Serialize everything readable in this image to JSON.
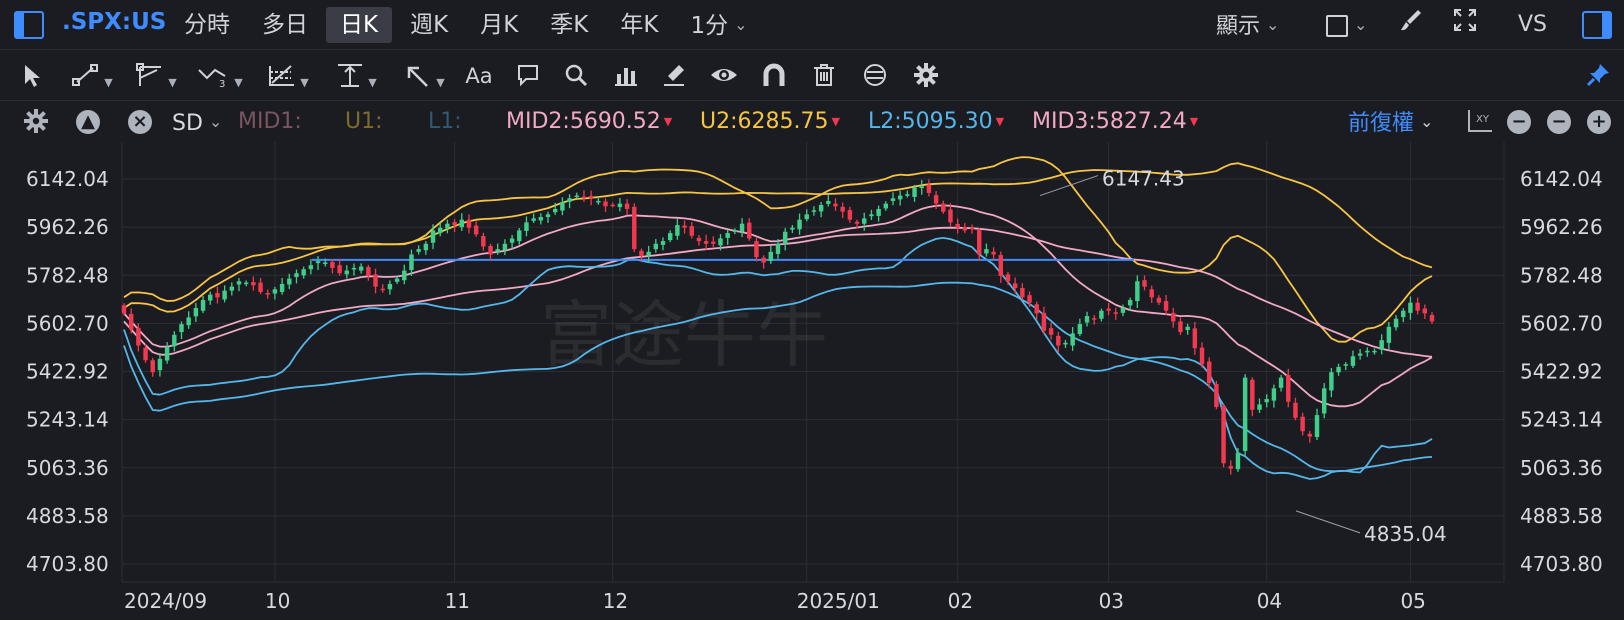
{
  "topbar": {
    "symbol": ".SPX:US",
    "tabs": [
      "分時",
      "多日",
      "日K",
      "週K",
      "月K",
      "季K",
      "年K",
      "1分"
    ],
    "active_tab": "日K",
    "display_label": "顯示",
    "vs_label": "VS"
  },
  "toolbar": {
    "icons": [
      "cursor-icon",
      "line-tool-icon",
      "ray-tool-icon",
      "wave-tool-icon",
      "fib-tool-icon",
      "level-tool-icon",
      "arrow-tool-icon",
      "text-tool-icon",
      "comment-icon",
      "search-icon",
      "measure-icon",
      "brush-icon",
      "eye-icon",
      "magnet-icon",
      "trash-icon",
      "sync-icon",
      "gear-icon",
      "pin-icon"
    ],
    "text_tool_label": "Aa"
  },
  "indicator_bar": {
    "indicator": "SD",
    "mid1": "MID1:",
    "u1": "U1:",
    "l1": "L1:",
    "mid2": "MID2:5690.52",
    "u2": "U2:6285.75",
    "l2": "L2:5095.30",
    "mid3": "MID3:5827.24",
    "adjust": "前復權",
    "colors": {
      "mid": "#f1a9c5",
      "upper": "#f6c544",
      "lower": "#55b6ea",
      "mid1": "#7a5560",
      "u1": "#7d6b2c",
      "l1": "#2f5a70"
    }
  },
  "chart_data": {
    "type": "candlestick",
    "y_ticks": [
      "6142.04",
      "5962.26",
      "5782.48",
      "5602.70",
      "5422.92",
      "5243.14",
      "5063.36",
      "4883.58",
      "4703.80"
    ],
    "ylim": [
      4703.8,
      6142.04
    ],
    "x_labels": [
      "2024/09",
      "10",
      "11",
      "12",
      "2025/01",
      "02",
      "03",
      "04",
      "05"
    ],
    "annotations": {
      "high": "6147.43",
      "low": "4835.04"
    },
    "horizontal_line": 5840,
    "up_color": "#3fcf8a",
    "down_color": "#f2394f",
    "watermark": "富途牛牛",
    "closes": [
      5640,
      5580,
      5520,
      5465,
      5420,
      5470,
      5515,
      5560,
      5600,
      5625,
      5660,
      5690,
      5710,
      5700,
      5725,
      5740,
      5760,
      5755,
      5745,
      5720,
      5710,
      5730,
      5750,
      5770,
      5790,
      5805,
      5820,
      5835,
      5830,
      5810,
      5790,
      5800,
      5810,
      5815,
      5780,
      5740,
      5730,
      5750,
      5770,
      5800,
      5860,
      5880,
      5900,
      5950,
      5960,
      5975,
      5970,
      5990,
      5960,
      5935,
      5890,
      5860,
      5880,
      5900,
      5920,
      5950,
      5980,
      5995,
      6000,
      6010,
      6030,
      6055,
      6070,
      6080,
      6075,
      6070,
      6060,
      6040,
      6045,
      6050,
      6030,
      5880,
      5855,
      5870,
      5900,
      5910,
      5940,
      5970,
      5960,
      5930,
      5910,
      5900,
      5900,
      5920,
      5940,
      5950,
      5975,
      5920,
      5850,
      5830,
      5870,
      5900,
      5945,
      5960,
      5990,
      6010,
      6025,
      6045,
      6060,
      6040,
      6020,
      5990,
      5975,
      5995,
      6010,
      6030,
      6050,
      6070,
      6080,
      6085,
      6110,
      6115,
      6090,
      6050,
      6020,
      5980,
      5960,
      5950,
      5955,
      5860,
      5880,
      5860,
      5780,
      5760,
      5735,
      5700,
      5680,
      5640,
      5575,
      5560,
      5520,
      5530,
      5565,
      5600,
      5630,
      5620,
      5650,
      5650,
      5640,
      5660,
      5690,
      5760,
      5740,
      5700,
      5680,
      5650,
      5610,
      5570,
      5590,
      5510,
      5450,
      5380,
      5290,
      5080,
      5060,
      5120,
      5400,
      5280,
      5300,
      5320,
      5360,
      5400,
      5310,
      5250,
      5200,
      5180,
      5260,
      5360,
      5420,
      5440,
      5450,
      5480,
      5490,
      5500,
      5500,
      5540,
      5590,
      5620,
      5650,
      5680,
      5650,
      5640,
      5610
    ]
  }
}
